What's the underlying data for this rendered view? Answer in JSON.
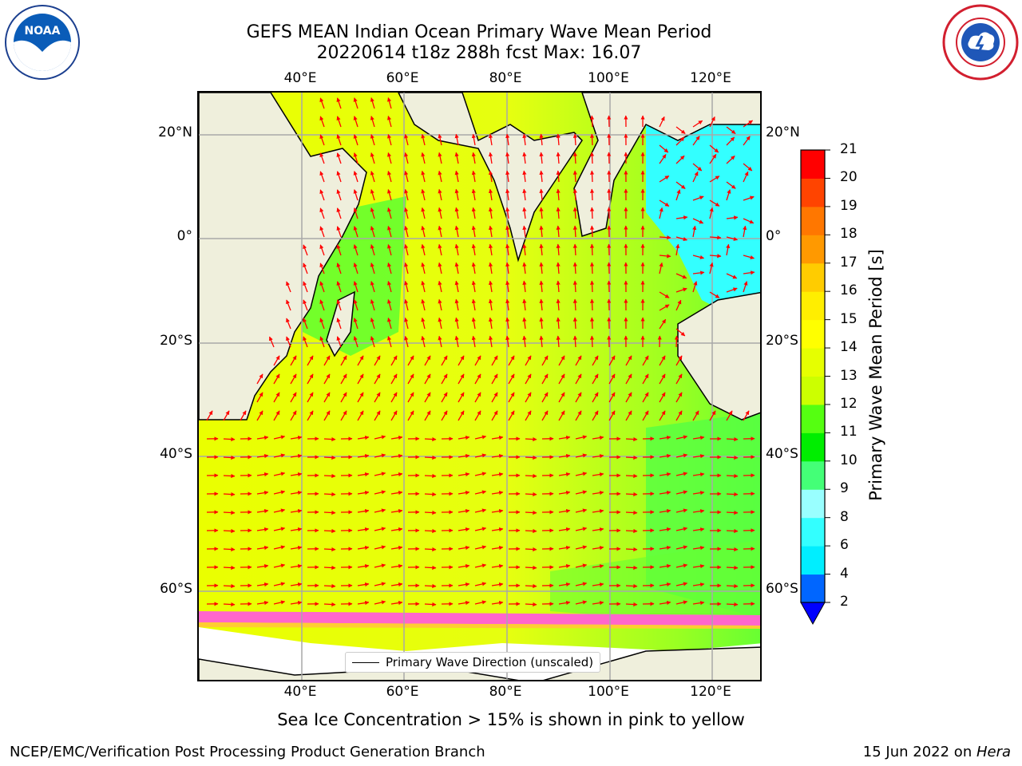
{
  "header": {
    "title": "GEFS MEAN Indian Ocean Primary Wave Mean Period",
    "subtitle": "20220614 t18z 288h fcst   Max: 16.07"
  },
  "logos": {
    "left": "NOAA",
    "right": "NATIONAL WEATHER SERVICE"
  },
  "map": {
    "lon_ticks_top": [
      "40°E",
      "60°E",
      "80°E",
      "100°E",
      "120°E"
    ],
    "lon_ticks_bottom": [
      "40°E",
      "60°E",
      "80°E",
      "100°E",
      "120°E"
    ],
    "lat_ticks_left": [
      "20°N",
      "0°",
      "20°S",
      "40°S",
      "60°S"
    ],
    "lat_ticks_right": [
      "20°N",
      "0°",
      "20°S",
      "40°S",
      "60°S"
    ],
    "legend_label": "Primary Wave Direction (unscaled)",
    "note": "Sea Ice Concentration > 15% is shown in pink to yellow"
  },
  "colorbar": {
    "label": "Primary Wave Mean Period [s]",
    "levels": [
      "2",
      "4",
      "6",
      "8",
      "9",
      "10",
      "11",
      "12",
      "13",
      "14",
      "15",
      "16",
      "17",
      "18",
      "19",
      "20",
      "21"
    ],
    "colors": [
      "#0066ff",
      "#00eeff",
      "#33ffff",
      "#99ffff",
      "#44ff77",
      "#00ee00",
      "#55ff11",
      "#ccff00",
      "#e6ff00",
      "#ffff00",
      "#ffee00",
      "#ffcc00",
      "#ff9900",
      "#ff7700",
      "#ff4400",
      "#ff0000"
    ],
    "extend_color": "#0000ff"
  },
  "footer": {
    "left": "NCEP/EMC/Verification Post Processing Product Generation Branch",
    "right_date": "15 Jun 2022 on ",
    "right_machine": "Hera"
  }
}
